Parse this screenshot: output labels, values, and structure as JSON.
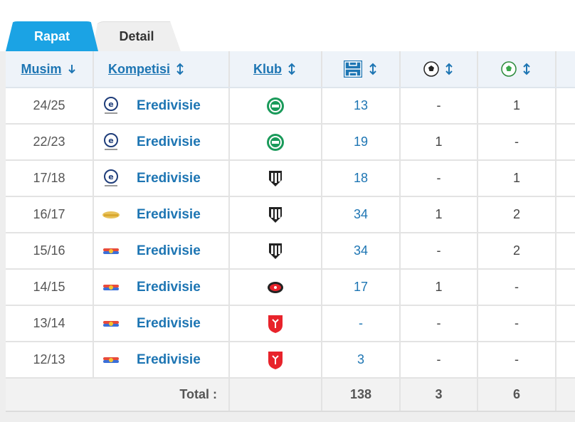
{
  "tabs": [
    {
      "label": "Rapat",
      "active": true
    },
    {
      "label": "Detail",
      "active": false
    }
  ],
  "columns": {
    "season": "Musim",
    "competition": "Kompetisi",
    "club": "Klub",
    "appearances_icon": "lineup-icon",
    "goals_icon": "ball-icon",
    "assists_icon": "assist-ball-icon"
  },
  "rows": [
    {
      "season": "24/25",
      "competition": "Eredivisie",
      "comp_logo": "eredivisie-new-logo",
      "club_logo": "groningen-logo",
      "apps": "13",
      "goals": "-",
      "assists": "1"
    },
    {
      "season": "22/23",
      "competition": "Eredivisie",
      "comp_logo": "eredivisie-new-logo",
      "club_logo": "groningen-logo",
      "apps": "19",
      "goals": "1",
      "assists": "-"
    },
    {
      "season": "17/18",
      "competition": "Eredivisie",
      "comp_logo": "eredivisie-new-logo",
      "club_logo": "heracles-logo",
      "apps": "18",
      "goals": "-",
      "assists": "1"
    },
    {
      "season": "16/17",
      "competition": "Eredivisie",
      "comp_logo": "eredivisie-gold-logo",
      "club_logo": "heracles-logo",
      "apps": "34",
      "goals": "1",
      "assists": "2"
    },
    {
      "season": "15/16",
      "competition": "Eredivisie",
      "comp_logo": "eredivisie-old-logo",
      "club_logo": "heracles-logo",
      "apps": "34",
      "goals": "-",
      "assists": "2"
    },
    {
      "season": "14/15",
      "competition": "Eredivisie",
      "comp_logo": "eredivisie-old-logo",
      "club_logo": "az-logo",
      "apps": "17",
      "goals": "1",
      "assists": "-"
    },
    {
      "season": "13/14",
      "competition": "Eredivisie",
      "comp_logo": "eredivisie-old-logo",
      "club_logo": "twente-logo",
      "apps": "-",
      "goals": "-",
      "assists": "-"
    },
    {
      "season": "12/13",
      "competition": "Eredivisie",
      "comp_logo": "eredivisie-old-logo",
      "club_logo": "twente-logo",
      "apps": "3",
      "goals": "-",
      "assists": "-"
    }
  ],
  "total": {
    "label": "Total :",
    "apps": "138",
    "goals": "3",
    "assists": "6"
  },
  "colors": {
    "accent": "#1ba3e4",
    "link": "#1d75b3",
    "groningen": "#1a9a5a",
    "twente": "#e8232b"
  }
}
